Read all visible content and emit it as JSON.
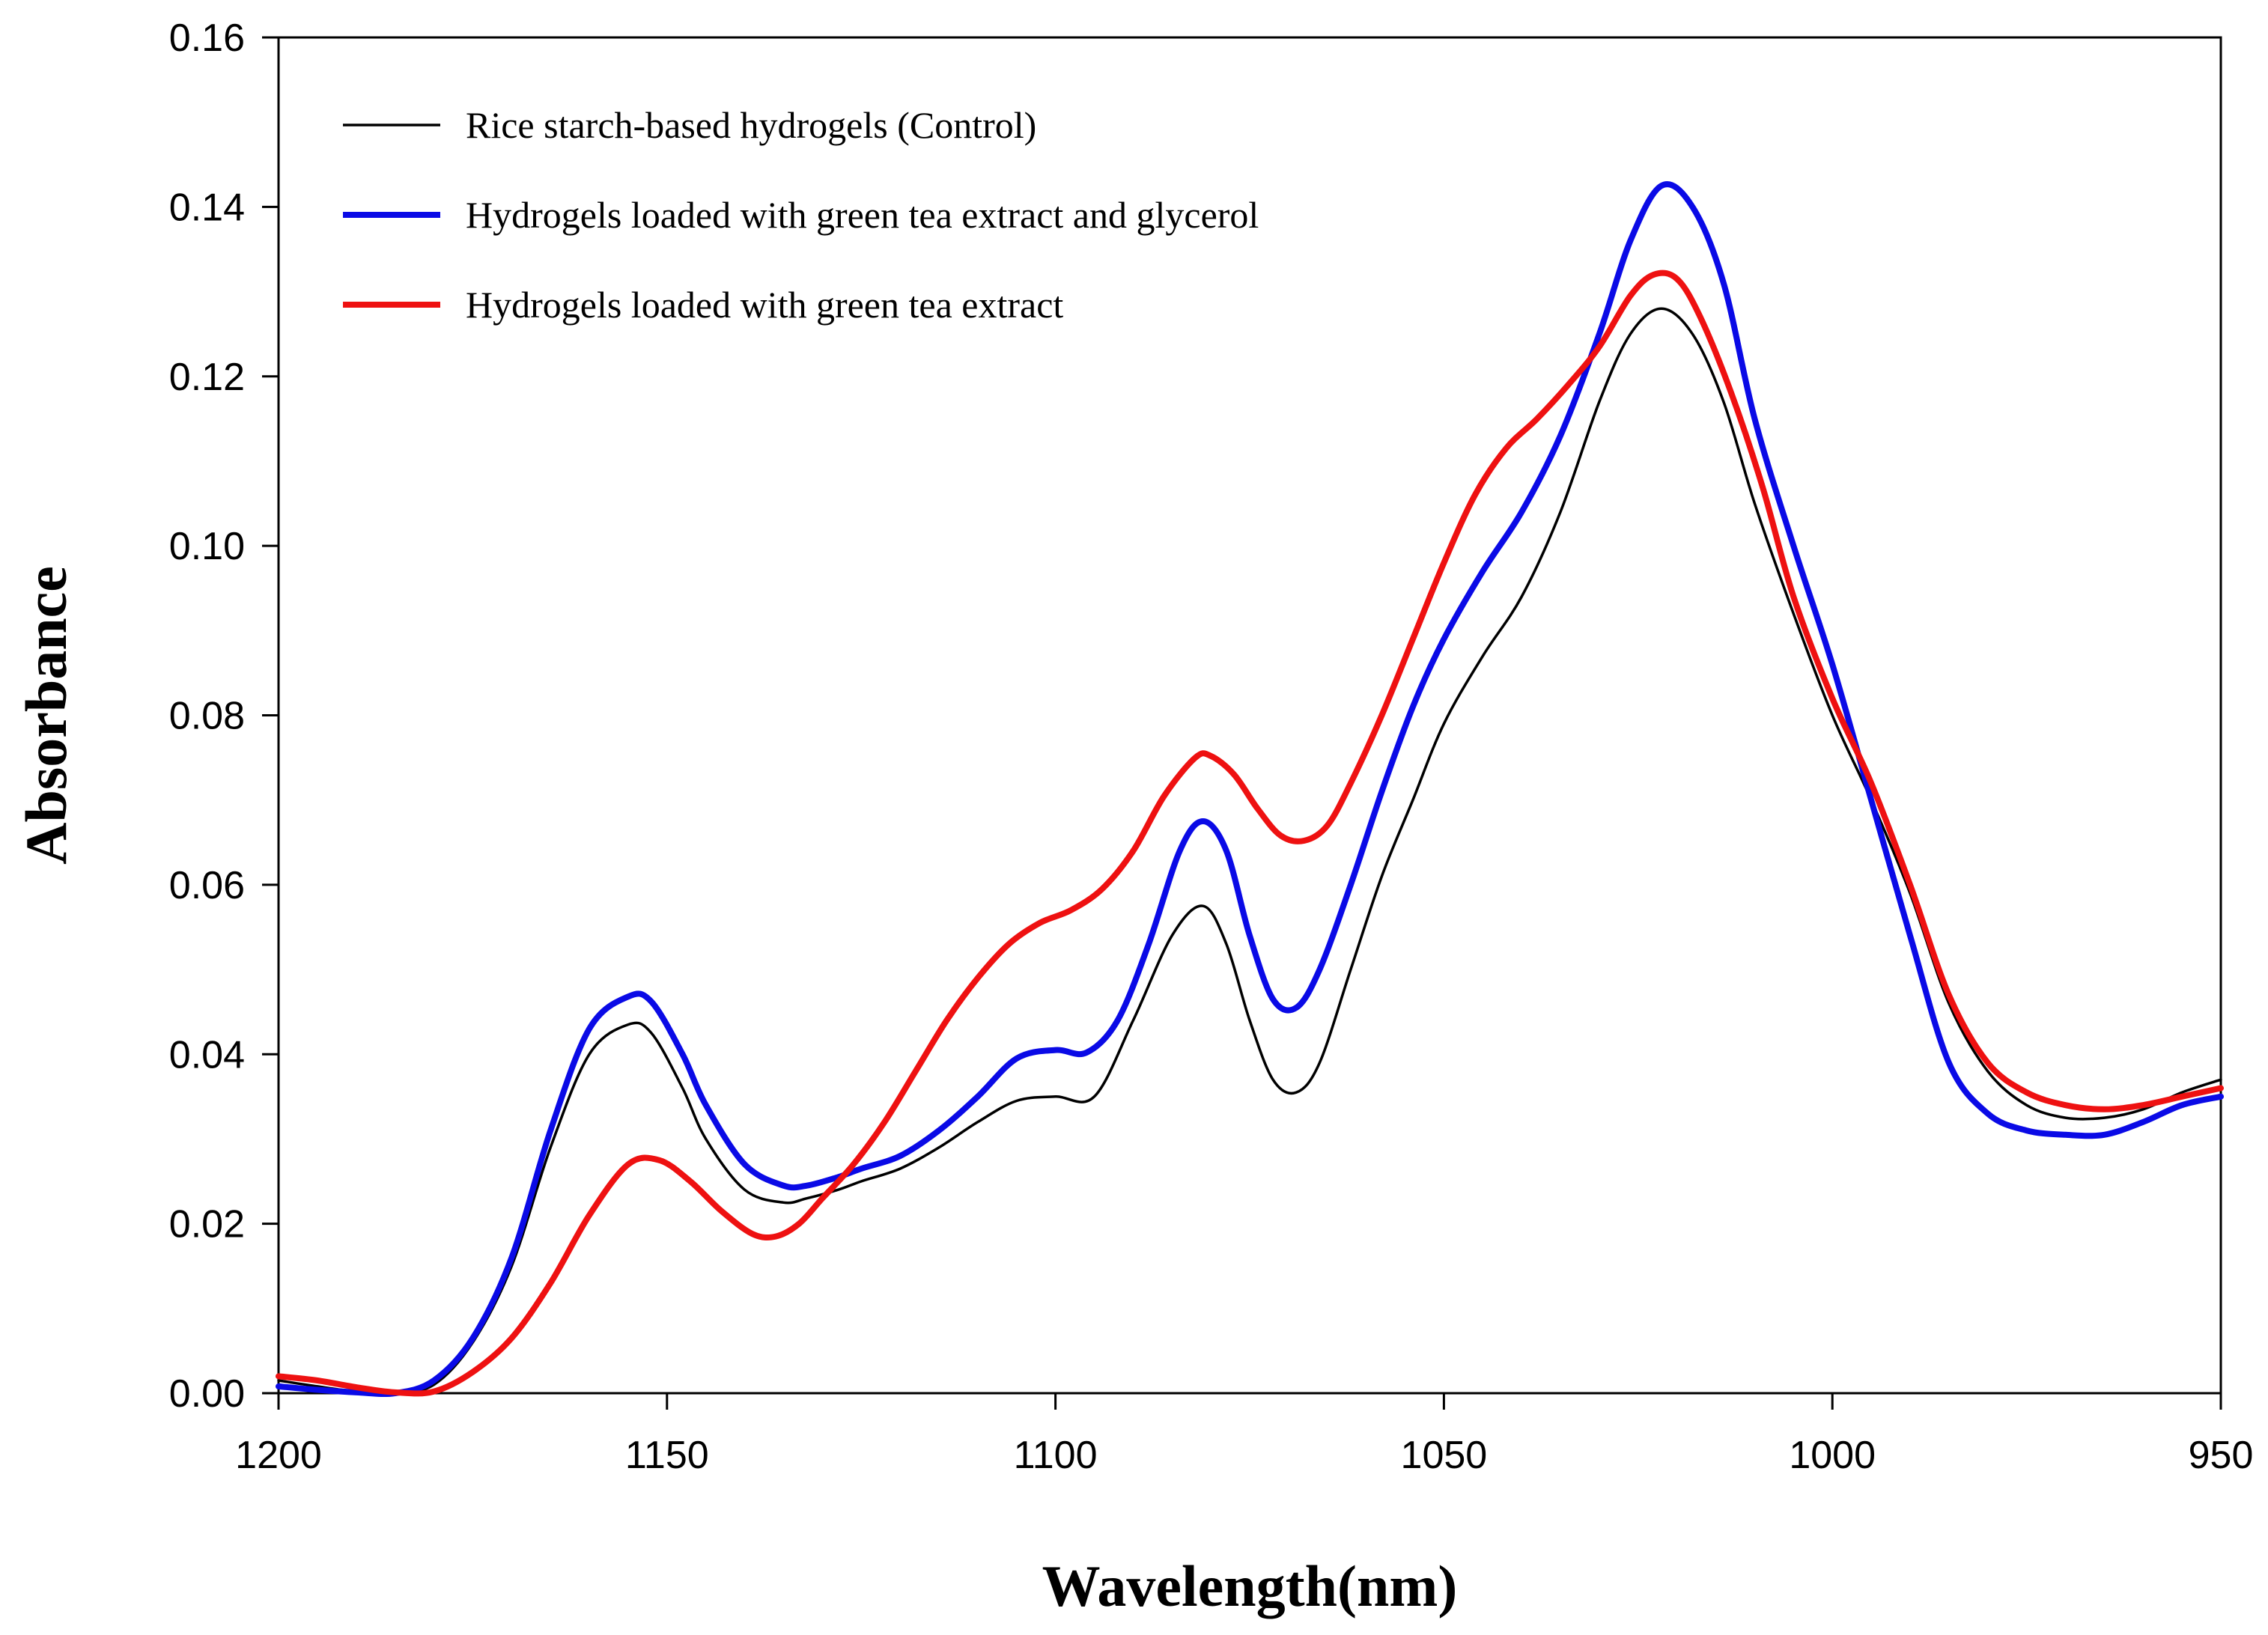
{
  "chart_data": {
    "type": "line",
    "title": "",
    "xlabel": "Wavelength(nm)",
    "ylabel": "Absorbance",
    "xlim": [
      1200,
      950
    ],
    "ylim": [
      0,
      0.16
    ],
    "x_reversed": true,
    "grid": false,
    "legend_position": "top-left",
    "xticks": [
      1200,
      1150,
      1100,
      1050,
      1000,
      950
    ],
    "xtick_labels": [
      "1200",
      "1150",
      "1100",
      "1050",
      "1000",
      "950"
    ],
    "yticks": [
      0,
      0.02,
      0.04,
      0.06,
      0.08,
      0.1,
      0.12,
      0.14,
      0.16
    ],
    "ytick_labels": [
      "0.00",
      "0.02",
      "0.04",
      "0.06",
      "0.08",
      "0.10",
      "0.12",
      "0.14",
      "0.16"
    ],
    "series": [
      {
        "name": "Rice starch-based hydrogels (Control)",
        "color": "#000000",
        "stroke": "thin",
        "x": [
          1200,
          1195,
          1190,
          1185,
          1180,
          1175,
          1170,
          1165,
          1160,
          1155,
          1152,
          1148,
          1145,
          1140,
          1135,
          1132,
          1128,
          1125,
          1120,
          1115,
          1110,
          1105,
          1100,
          1095,
          1090,
          1085,
          1081,
          1078,
          1075,
          1072,
          1069,
          1066,
          1062,
          1058,
          1054,
          1050,
          1045,
          1040,
          1035,
          1030,
          1026,
          1022,
          1018,
          1014,
          1010,
          1005,
          1000,
          995,
          990,
          985,
          980,
          975,
          970,
          965,
          960,
          955,
          950
        ],
        "y": [
          0.0015,
          0.0008,
          0.0002,
          0.0,
          0.001,
          0.006,
          0.015,
          0.029,
          0.04,
          0.0435,
          0.0425,
          0.036,
          0.03,
          0.024,
          0.0225,
          0.023,
          0.024,
          0.025,
          0.0265,
          0.029,
          0.032,
          0.0345,
          0.035,
          0.035,
          0.044,
          0.054,
          0.0575,
          0.053,
          0.044,
          0.037,
          0.0355,
          0.039,
          0.05,
          0.061,
          0.07,
          0.079,
          0.087,
          0.094,
          0.104,
          0.117,
          0.125,
          0.128,
          0.125,
          0.117,
          0.105,
          0.092,
          0.08,
          0.07,
          0.059,
          0.046,
          0.038,
          0.034,
          0.0325,
          0.0325,
          0.0335,
          0.0355,
          0.037
        ]
      },
      {
        "name": "Hydrogels loaded with green tea extract and glycerol",
        "color": "#0a0ae6",
        "stroke": "thick",
        "x": [
          1200,
          1195,
          1190,
          1185,
          1180,
          1175,
          1170,
          1165,
          1160,
          1155,
          1152,
          1148,
          1145,
          1140,
          1135,
          1132,
          1128,
          1125,
          1120,
          1115,
          1110,
          1105,
          1100,
          1096,
          1092,
          1088,
          1084,
          1081,
          1078,
          1075,
          1072,
          1069,
          1066,
          1062,
          1058,
          1054,
          1050,
          1045,
          1040,
          1035,
          1030,
          1026,
          1022,
          1018,
          1014,
          1010,
          1005,
          1000,
          995,
          990,
          985,
          980,
          975,
          970,
          965,
          960,
          955,
          950
        ],
        "y": [
          0.0008,
          0.0004,
          0.0001,
          0.0,
          0.0015,
          0.0065,
          0.016,
          0.031,
          0.043,
          0.0468,
          0.0462,
          0.04,
          0.034,
          0.027,
          0.0245,
          0.0245,
          0.0255,
          0.0265,
          0.028,
          0.031,
          0.035,
          0.0395,
          0.0405,
          0.0402,
          0.044,
          0.053,
          0.064,
          0.0675,
          0.064,
          0.054,
          0.0465,
          0.0455,
          0.05,
          0.06,
          0.071,
          0.081,
          0.089,
          0.097,
          0.104,
          0.113,
          0.125,
          0.136,
          0.1425,
          0.14,
          0.131,
          0.115,
          0.1,
          0.086,
          0.07,
          0.054,
          0.039,
          0.033,
          0.031,
          0.0305,
          0.0305,
          0.032,
          0.034,
          0.035
        ]
      },
      {
        "name": "Hydrogels loaded with green tea extract",
        "color": "#ee1111",
        "stroke": "thick",
        "x": [
          1200,
          1195,
          1190,
          1185,
          1180,
          1175,
          1170,
          1165,
          1160,
          1155,
          1151,
          1147,
          1143,
          1139,
          1136,
          1133,
          1130,
          1126,
          1122,
          1118,
          1114,
          1110,
          1106,
          1102,
          1098,
          1094,
          1090,
          1086,
          1082,
          1080,
          1077,
          1074,
          1071,
          1068,
          1065,
          1062,
          1058,
          1054,
          1050,
          1046,
          1042,
          1038,
          1034,
          1030,
          1026,
          1023,
          1020,
          1017,
          1013,
          1009,
          1005,
          1000,
          995,
          990,
          985,
          980,
          975,
          970,
          965,
          960,
          955,
          950
        ],
        "y": [
          0.002,
          0.0015,
          0.0007,
          0.0001,
          0.0002,
          0.0025,
          0.0065,
          0.013,
          0.021,
          0.027,
          0.0275,
          0.025,
          0.0215,
          0.0188,
          0.0185,
          0.02,
          0.023,
          0.027,
          0.032,
          0.038,
          0.044,
          0.049,
          0.053,
          0.0555,
          0.057,
          0.0595,
          0.064,
          0.0705,
          0.075,
          0.0752,
          0.073,
          0.069,
          0.0658,
          0.0652,
          0.067,
          0.072,
          0.08,
          0.089,
          0.098,
          0.106,
          0.1115,
          0.115,
          0.119,
          0.1235,
          0.1295,
          0.132,
          0.1315,
          0.127,
          0.118,
          0.107,
          0.094,
          0.082,
          0.072,
          0.06,
          0.047,
          0.039,
          0.0355,
          0.034,
          0.0335,
          0.034,
          0.035,
          0.036
        ]
      }
    ]
  }
}
